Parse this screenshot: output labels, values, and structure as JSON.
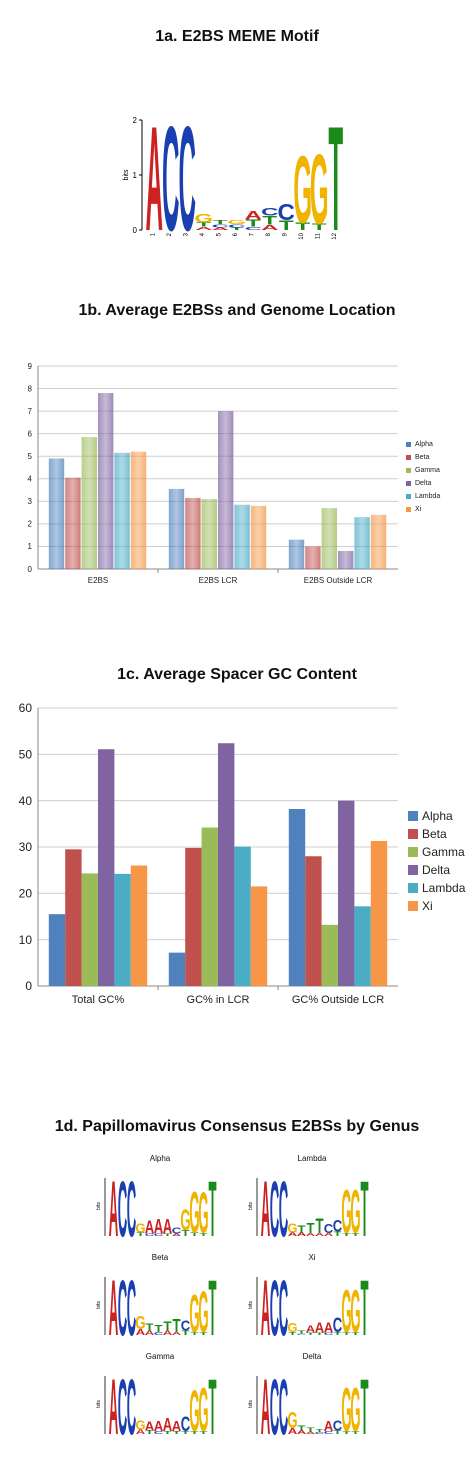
{
  "titles": {
    "t1a": "1a. E2BS MEME Motif",
    "t1b": "1b. Average E2BSs and Genome Location",
    "t1c": "1c. Average Spacer GC Content",
    "t1d": "1d. Papillomavirus Consensus E2BSs by Genus"
  },
  "colors": {
    "A": "#cc2222",
    "C": "#1a3fb0",
    "G": "#f0b400",
    "T": "#1a8a1a",
    "Alpha": "#4f81bd",
    "Beta": "#c0504d",
    "Gamma": "#9bbb59",
    "Delta": "#8064a2",
    "Lambda": "#4bacc6",
    "Xi": "#f79646"
  },
  "motif_main": {
    "ylabel": "bits",
    "yticks": [
      "0",
      "1",
      "2"
    ],
    "positions": [
      "1",
      "2",
      "3",
      "4",
      "5",
      "6",
      "7",
      "8",
      "9",
      "10",
      "11",
      "12"
    ],
    "columns": [
      [
        [
          "A",
          1.95
        ]
      ],
      [
        [
          "C",
          1.95
        ]
      ],
      [
        [
          "C",
          1.95
        ]
      ],
      [
        [
          "A",
          0.06
        ],
        [
          "T",
          0.08
        ],
        [
          "G",
          0.16
        ]
      ],
      [
        [
          "A",
          0.05
        ],
        [
          "C",
          0.06
        ],
        [
          "T",
          0.07
        ]
      ],
      [
        [
          "T",
          0.05
        ],
        [
          "C",
          0.06
        ],
        [
          "G",
          0.07
        ]
      ],
      [
        [
          "C",
          0.06
        ],
        [
          "T",
          0.13
        ],
        [
          "A",
          0.16
        ]
      ],
      [
        [
          "A",
          0.1
        ],
        [
          "T",
          0.16
        ],
        [
          "C",
          0.14
        ]
      ],
      [
        [
          "T",
          0.18
        ],
        [
          "C",
          0.3
        ]
      ],
      [
        [
          "T",
          0.14
        ],
        [
          "G",
          1.25
        ]
      ],
      [
        [
          "T",
          0.12
        ],
        [
          "G",
          1.3
        ]
      ],
      [
        [
          "T",
          1.95
        ]
      ]
    ]
  },
  "chart_data": [
    {
      "type": "bar",
      "categories": [
        "E2BS",
        "E2BS LCR",
        "E2BS Outside LCR"
      ],
      "series": [
        {
          "name": "Alpha",
          "values": [
            4.9,
            3.55,
            1.3
          ]
        },
        {
          "name": "Beta",
          "values": [
            4.05,
            3.15,
            1.0
          ]
        },
        {
          "name": "Gamma",
          "values": [
            5.85,
            3.1,
            2.7
          ]
        },
        {
          "name": "Delta",
          "values": [
            7.8,
            7.0,
            0.8
          ]
        },
        {
          "name": "Lambda",
          "values": [
            5.15,
            2.85,
            2.3
          ]
        },
        {
          "name": "Xi",
          "values": [
            5.2,
            2.8,
            2.4
          ]
        }
      ],
      "yticks": [
        "0",
        "1",
        "2",
        "3",
        "4",
        "5",
        "6",
        "7",
        "8",
        "9"
      ],
      "ylim": [
        0,
        9
      ],
      "grid": true,
      "legend": "right"
    },
    {
      "type": "bar",
      "categories": [
        "Total GC%",
        "GC% in LCR",
        "GC% Outside LCR"
      ],
      "series": [
        {
          "name": "Alpha",
          "values": [
            15.5,
            7.2,
            38.2
          ]
        },
        {
          "name": "Beta",
          "values": [
            29.5,
            29.8,
            28.0
          ]
        },
        {
          "name": "Gamma",
          "values": [
            24.3,
            34.2,
            13.2
          ]
        },
        {
          "name": "Delta",
          "values": [
            51.1,
            52.4,
            40.0
          ]
        },
        {
          "name": "Lambda",
          "values": [
            24.2,
            30.1,
            17.2
          ]
        },
        {
          "name": "Xi",
          "values": [
            26.0,
            21.5,
            31.3
          ]
        }
      ],
      "yticks": [
        "0",
        "10",
        "20",
        "30",
        "40",
        "50",
        "60"
      ],
      "ylim": [
        0,
        60
      ],
      "grid": true,
      "legend": "right"
    }
  ],
  "genus_logos": [
    {
      "name": "Alpha",
      "ylabel": "bits",
      "columns": [
        [
          [
            "A",
            1.9
          ]
        ],
        [
          [
            "C",
            1.9
          ]
        ],
        [
          [
            "C",
            1.9
          ]
        ],
        [
          [
            "T",
            0.12
          ],
          [
            "G",
            0.3
          ]
        ],
        [
          [
            "C",
            0.08
          ],
          [
            "A",
            0.45
          ]
        ],
        [
          [
            "C",
            0.08
          ],
          [
            "A",
            0.5
          ]
        ],
        [
          [
            "T",
            0.08
          ],
          [
            "A",
            0.5
          ]
        ],
        [
          [
            "A",
            0.08
          ],
          [
            "C",
            0.2
          ]
        ],
        [
          [
            "T",
            0.2
          ],
          [
            "G",
            0.7
          ]
        ],
        [
          [
            "T",
            0.12
          ],
          [
            "G",
            1.4
          ]
        ],
        [
          [
            "T",
            0.1
          ],
          [
            "G",
            1.4
          ]
        ],
        [
          [
            "T",
            1.9
          ]
        ]
      ]
    },
    {
      "name": "Lambda",
      "ylabel": "bits",
      "columns": [
        [
          [
            "A",
            1.9
          ]
        ],
        [
          [
            "C",
            1.9
          ]
        ],
        [
          [
            "C",
            1.9
          ]
        ],
        [
          [
            "A",
            0.12
          ],
          [
            "G",
            0.3
          ]
        ],
        [
          [
            "A",
            0.12
          ],
          [
            "T",
            0.25
          ]
        ],
        [
          [
            "A",
            0.1
          ],
          [
            "T",
            0.35
          ]
        ],
        [
          [
            "A",
            0.1
          ],
          [
            "T",
            0.5
          ]
        ],
        [
          [
            "A",
            0.1
          ],
          [
            "C",
            0.3
          ]
        ],
        [
          [
            "T",
            0.15
          ],
          [
            "C",
            0.4
          ]
        ],
        [
          [
            "T",
            0.1
          ],
          [
            "G",
            1.5
          ]
        ],
        [
          [
            "T",
            0.1
          ],
          [
            "G",
            1.5
          ]
        ],
        [
          [
            "T",
            1.9
          ]
        ]
      ]
    },
    {
      "name": "Beta",
      "ylabel": "bits",
      "columns": [
        [
          [
            "A",
            1.9
          ]
        ],
        [
          [
            "C",
            1.9
          ]
        ],
        [
          [
            "C",
            1.9
          ]
        ],
        [
          [
            "A",
            0.2
          ],
          [
            "G",
            0.45
          ]
        ],
        [
          [
            "A",
            0.15
          ],
          [
            "T",
            0.25
          ]
        ],
        [
          [
            "C",
            0.1
          ],
          [
            "T",
            0.25
          ]
        ],
        [
          [
            "A",
            0.15
          ],
          [
            "T",
            0.3
          ]
        ],
        [
          [
            "A",
            0.1
          ],
          [
            "T",
            0.45
          ]
        ],
        [
          [
            "T",
            0.15
          ],
          [
            "C",
            0.35
          ]
        ],
        [
          [
            "T",
            0.1
          ],
          [
            "G",
            1.3
          ]
        ],
        [
          [
            "T",
            0.1
          ],
          [
            "G",
            1.4
          ]
        ],
        [
          [
            "T",
            1.9
          ]
        ]
      ]
    },
    {
      "name": "Xi",
      "ylabel": "bits",
      "columns": [
        [
          [
            "A",
            1.9
          ]
        ],
        [
          [
            "C",
            1.9
          ]
        ],
        [
          [
            "C",
            1.9
          ]
        ],
        [
          [
            "T",
            0.1
          ],
          [
            "G",
            0.3
          ]
        ],
        [
          [
            "C",
            0.05
          ],
          [
            "T",
            0.1
          ]
        ],
        [
          [
            "T",
            0.08
          ],
          [
            "A",
            0.25
          ]
        ],
        [
          [
            "T",
            0.08
          ],
          [
            "A",
            0.35
          ]
        ],
        [
          [
            "C",
            0.08
          ],
          [
            "A",
            0.35
          ]
        ],
        [
          [
            "T",
            0.1
          ],
          [
            "C",
            0.5
          ]
        ],
        [
          [
            "T",
            0.1
          ],
          [
            "G",
            1.45
          ]
        ],
        [
          [
            "T",
            0.1
          ],
          [
            "G",
            1.45
          ]
        ],
        [
          [
            "T",
            1.9
          ]
        ]
      ]
    },
    {
      "name": "Gamma",
      "ylabel": "bits",
      "columns": [
        [
          [
            "A",
            1.9
          ]
        ],
        [
          [
            "C",
            1.9
          ]
        ],
        [
          [
            "C",
            1.9
          ]
        ],
        [
          [
            "A",
            0.15
          ],
          [
            "G",
            0.3
          ]
        ],
        [
          [
            "T",
            0.12
          ],
          [
            "A",
            0.3
          ]
        ],
        [
          [
            "C",
            0.1
          ],
          [
            "A",
            0.35
          ]
        ],
        [
          [
            "T",
            0.1
          ],
          [
            "A",
            0.45
          ]
        ],
        [
          [
            "T",
            0.1
          ],
          [
            "A",
            0.35
          ]
        ],
        [
          [
            "T",
            0.1
          ],
          [
            "C",
            0.5
          ]
        ],
        [
          [
            "T",
            0.1
          ],
          [
            "G",
            1.4
          ]
        ],
        [
          [
            "T",
            0.1
          ],
          [
            "G",
            1.5
          ]
        ],
        [
          [
            "T",
            1.9
          ]
        ]
      ]
    },
    {
      "name": "Delta",
      "ylabel": "bits",
      "columns": [
        [
          [
            "A",
            1.9
          ]
        ],
        [
          [
            "C",
            1.9
          ]
        ],
        [
          [
            "C",
            1.9
          ]
        ],
        [
          [
            "A",
            0.2
          ],
          [
            "G",
            0.55
          ]
        ],
        [
          [
            "A",
            0.12
          ],
          [
            "T",
            0.18
          ]
        ],
        [
          [
            "A",
            0.08
          ],
          [
            "T",
            0.12
          ]
        ],
        [
          [
            "C",
            0.06
          ],
          [
            "T",
            0.1
          ]
        ],
        [
          [
            "C",
            0.1
          ],
          [
            "A",
            0.35
          ]
        ],
        [
          [
            "T",
            0.12
          ],
          [
            "C",
            0.35
          ]
        ],
        [
          [
            "T",
            0.1
          ],
          [
            "G",
            1.5
          ]
        ],
        [
          [
            "T",
            0.1
          ],
          [
            "G",
            1.5
          ]
        ],
        [
          [
            "T",
            1.9
          ]
        ]
      ]
    }
  ]
}
